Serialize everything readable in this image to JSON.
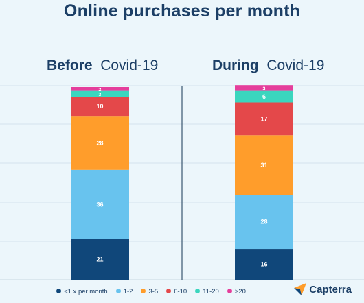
{
  "title": "Online purchases per month",
  "panels": [
    {
      "bold": "Before",
      "rest": "Covid-19"
    },
    {
      "bold": "During",
      "rest": "Covid-19"
    }
  ],
  "brand": {
    "name": "Capterra"
  },
  "chart_data": {
    "type": "bar",
    "stacked": true,
    "categories": [
      "Before Covid-19",
      "During Covid-19"
    ],
    "series": [
      {
        "name": "<1 x per month",
        "color": "#10477a",
        "values": [
          21,
          16
        ]
      },
      {
        "name": "1-2",
        "color": "#68c3ee",
        "values": [
          36,
          28
        ]
      },
      {
        "name": "3-5",
        "color": "#ff9d2b",
        "values": [
          28,
          31
        ]
      },
      {
        "name": "6-10",
        "color": "#e4484a",
        "values": [
          10,
          17
        ]
      },
      {
        "name": "11-20",
        "color": "#3bd6be",
        "values": [
          3,
          6
        ]
      },
      {
        "name": ">20",
        "color": "#e53e9b",
        "values": [
          2,
          3
        ]
      }
    ],
    "title": "Online purchases per month",
    "legend_position": "bottom",
    "grid": true
  }
}
